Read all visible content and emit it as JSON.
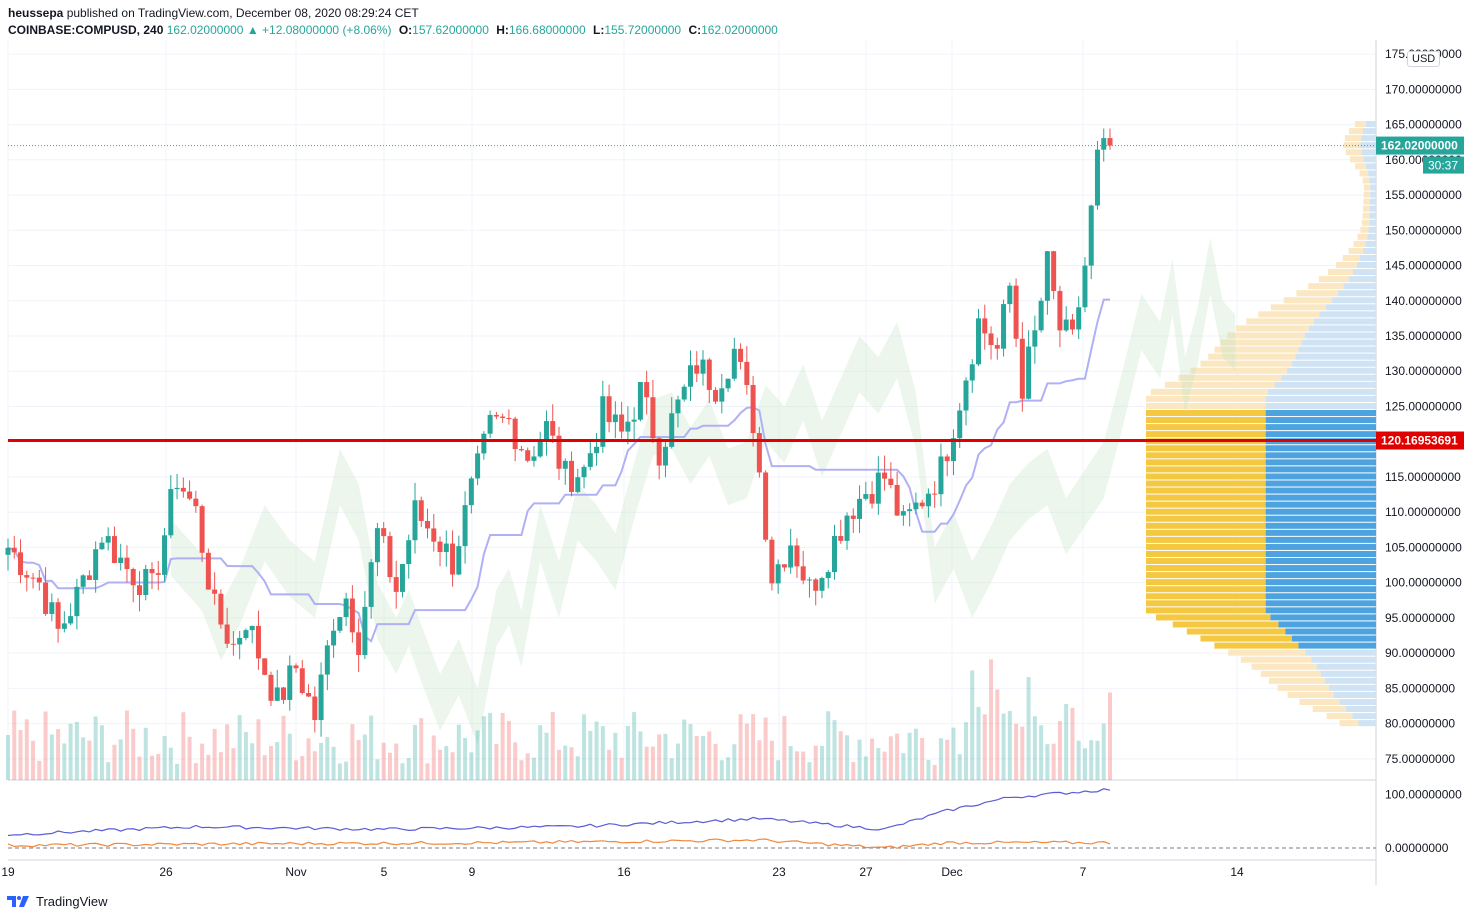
{
  "header": {
    "publisher": "heussepa",
    "published_text": "published on TradingView.com, December 08, 2020 08:29:24 CET",
    "symbol": "COINBASE:COMPUSD, 240",
    "last": "162.02000000",
    "change": "▲ +12.08000000 (+8.06%)",
    "open_label": "O:",
    "open": "157.62000000",
    "high_label": "H:",
    "high": "166.68000000",
    "low_label": "L:",
    "low": "155.72000000",
    "close_label": "C:",
    "close": "162.02000000"
  },
  "footer": {
    "brand": "TradingView"
  },
  "colors": {
    "up": "#26a69a",
    "down": "#ef5350",
    "support_line": "#e00000",
    "vp_up": "#4da3e0",
    "vp_down": "#f5c842",
    "kumo_bull": "#c8e6c9",
    "kumo_bear": "#ffcdd2"
  },
  "chart_data": {
    "type": "candlestick",
    "currency": "USD",
    "x_tick_labels": [
      "19",
      "26",
      "Nov",
      "5",
      "9",
      "16",
      "23",
      "27",
      "Dec",
      "7",
      "14"
    ],
    "y_ticks": [
      75,
      80,
      85,
      90,
      95,
      100,
      105,
      110,
      115,
      120,
      125,
      130,
      135,
      140,
      145,
      150,
      155,
      160,
      165,
      170,
      175
    ],
    "y_tick_format_decimals": 8,
    "ylim": [
      72,
      177
    ],
    "last_price_label": "162.02000000",
    "countdown_label": "30:37",
    "horizontal_line": {
      "value": 120.16953691,
      "label": "120.16953691"
    },
    "candle_anchors": [
      [
        0,
        105
      ],
      [
        5,
        100
      ],
      [
        8,
        93
      ],
      [
        11,
        98
      ],
      [
        15,
        107
      ],
      [
        19,
        102
      ],
      [
        23,
        99
      ],
      [
        27,
        115
      ],
      [
        30,
        110
      ],
      [
        33,
        96
      ],
      [
        36,
        91
      ],
      [
        38,
        95
      ],
      [
        40,
        90
      ],
      [
        43,
        83
      ],
      [
        46,
        88
      ],
      [
        49,
        81
      ],
      [
        52,
        95
      ],
      [
        54,
        98
      ],
      [
        56,
        92
      ],
      [
        59,
        107
      ],
      [
        62,
        99
      ],
      [
        65,
        110
      ],
      [
        68,
        107
      ],
      [
        71,
        103
      ],
      [
        74,
        113
      ],
      [
        77,
        122
      ],
      [
        80,
        123
      ],
      [
        83,
        118
      ],
      [
        86,
        122
      ],
      [
        89,
        115
      ],
      [
        92,
        116
      ],
      [
        95,
        124
      ],
      [
        98,
        121
      ],
      [
        101,
        127
      ],
      [
        104,
        119
      ],
      [
        107,
        125
      ],
      [
        110,
        131
      ],
      [
        113,
        128
      ],
      [
        116,
        133
      ],
      [
        119,
        123
      ],
      [
        122,
        101
      ],
      [
        125,
        106
      ],
      [
        128,
        99
      ],
      [
        131,
        104
      ],
      [
        134,
        110
      ],
      [
        137,
        113
      ],
      [
        140,
        115
      ],
      [
        143,
        108
      ],
      [
        146,
        112
      ],
      [
        149,
        116
      ],
      [
        152,
        126
      ],
      [
        155,
        137
      ],
      [
        158,
        133
      ],
      [
        160,
        142
      ],
      [
        162,
        128
      ],
      [
        164,
        135
      ],
      [
        166,
        145
      ],
      [
        168,
        136
      ],
      [
        170,
        134
      ],
      [
        172,
        145
      ],
      [
        174,
        160
      ],
      [
        176,
        162.02
      ]
    ],
    "candle_count": 177,
    "volume_ma_note": "",
    "indicator_pane": {
      "y_ticks": [
        0,
        100
      ],
      "y_tick_format_decimals": 8,
      "series": [
        {
          "color": "#5b5bd6",
          "anchors": [
            [
              0,
              25
            ],
            [
              30,
              40
            ],
            [
              60,
              35
            ],
            [
              90,
              40
            ],
            [
              120,
              55
            ],
            [
              140,
              35
            ],
            [
              150,
              70
            ],
            [
              160,
              95
            ],
            [
              176,
              110
            ]
          ]
        },
        {
          "color": "#f0883e",
          "anchors": [
            [
              0,
              5
            ],
            [
              40,
              8
            ],
            [
              80,
              10
            ],
            [
              120,
              15
            ],
            [
              140,
              0
            ],
            [
              150,
              10
            ],
            [
              176,
              10
            ]
          ]
        }
      ]
    },
    "volume_profile": {
      "row_step": 1,
      "row_range": [
        80,
        165
      ],
      "value_area": [
        91,
        124
      ]
    }
  }
}
